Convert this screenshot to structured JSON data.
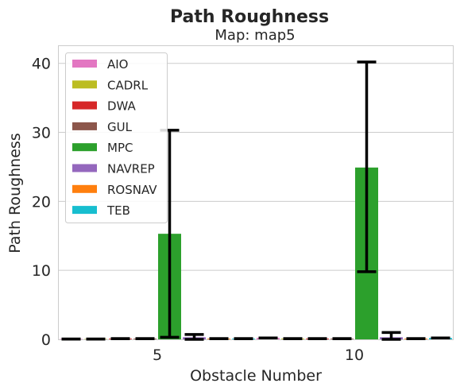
{
  "chart_data": {
    "type": "bar",
    "title": "Path Roughness",
    "subtitle": "Map: map5",
    "xlabel": "Obstacle Number",
    "ylabel": "Path Roughness",
    "categories": [
      "5",
      "10"
    ],
    "ylim": [
      0,
      42.5
    ],
    "yticks": [
      0,
      10,
      20,
      30,
      40
    ],
    "grid": "horizontal",
    "legend_placement": "upper-left",
    "series": [
      {
        "name": "AIO",
        "color": "#e377c2",
        "values": [
          0.05,
          0.2
        ],
        "err_low": [
          0.05,
          0.2
        ],
        "err_high": [
          0.05,
          0.2
        ]
      },
      {
        "name": "CADRL",
        "color": "#bcbd22",
        "values": [
          0.05,
          0.1
        ],
        "err_low": [
          0.05,
          0.1
        ],
        "err_high": [
          0.05,
          0.1
        ]
      },
      {
        "name": "DWA",
        "color": "#d62728",
        "values": [
          0.1,
          0.1
        ],
        "err_low": [
          0.1,
          0.1
        ],
        "err_high": [
          0.1,
          0.1
        ]
      },
      {
        "name": "GUL",
        "color": "#8c564b",
        "values": [
          0.1,
          0.1
        ],
        "err_low": [
          0.1,
          0.1
        ],
        "err_high": [
          0.1,
          0.1
        ]
      },
      {
        "name": "MPC",
        "color": "#2ca02c",
        "values": [
          15.3,
          24.9
        ],
        "err_low": [
          0.3,
          9.8
        ],
        "err_high": [
          30.3,
          40.2
        ]
      },
      {
        "name": "NAVREP",
        "color": "#9467bd",
        "values": [
          0.3,
          0.3
        ],
        "err_low": [
          0.0,
          0.0
        ],
        "err_high": [
          0.7,
          1.0
        ]
      },
      {
        "name": "ROSNAV",
        "color": "#ff7f0e",
        "values": [
          0.1,
          0.1
        ],
        "err_low": [
          0.1,
          0.1
        ],
        "err_high": [
          0.1,
          0.1
        ]
      },
      {
        "name": "TEB",
        "color": "#17becf",
        "values": [
          0.1,
          0.2
        ],
        "err_low": [
          0.1,
          0.2
        ],
        "err_high": [
          0.1,
          0.2
        ]
      }
    ]
  }
}
